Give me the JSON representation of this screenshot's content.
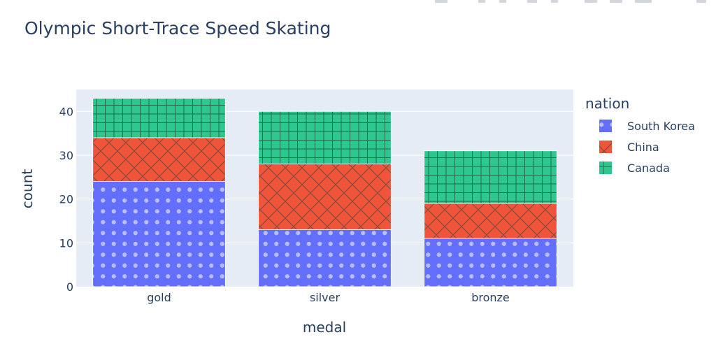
{
  "chart_data": {
    "type": "bar",
    "barmode": "stack",
    "title": "Olympic Short-Trace Speed Skating",
    "xlabel": "medal",
    "ylabel": "count",
    "categories": [
      "gold",
      "silver",
      "bronze"
    ],
    "ylim": [
      0,
      45
    ],
    "yticks": [
      0,
      10,
      20,
      30,
      40
    ],
    "grid": true,
    "legend": {
      "title": "nation",
      "position": "right"
    },
    "series": [
      {
        "name": "South Korea",
        "values": [
          24,
          13,
          11
        ],
        "color": "#636efa",
        "pattern": "dots"
      },
      {
        "name": "China",
        "values": [
          10,
          15,
          8
        ],
        "color": "#ef553b",
        "pattern": "crosshatch-diagonal"
      },
      {
        "name": "Canada",
        "values": [
          9,
          12,
          12
        ],
        "color": "#00cc96",
        "pattern": "grid"
      }
    ]
  },
  "colors": {
    "plot_background": "#e5ecf6",
    "text": "#2a3f5f"
  }
}
